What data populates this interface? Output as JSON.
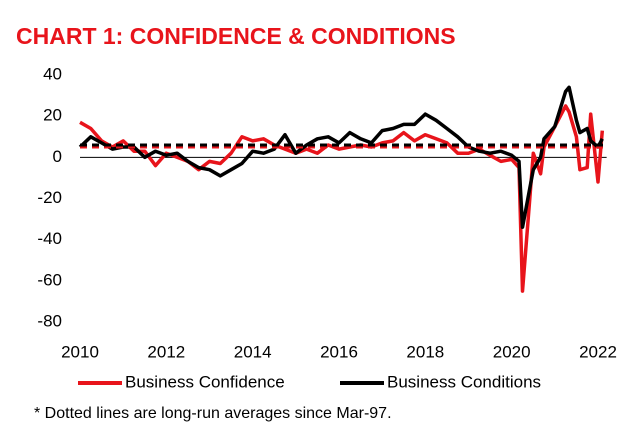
{
  "chart_data": {
    "type": "line",
    "title": "CHART 1: CONFIDENCE & CONDITIONS",
    "note": "* Dotted lines are long-run averages since Mar-97.",
    "x": [
      2010,
      2010.25,
      2010.5,
      2010.75,
      2011,
      2011.25,
      2011.5,
      2011.75,
      2012,
      2012.25,
      2012.5,
      2012.75,
      2013,
      2013.25,
      2013.5,
      2013.75,
      2014,
      2014.25,
      2014.5,
      2014.75,
      2015,
      2015.25,
      2015.5,
      2015.75,
      2016,
      2016.25,
      2016.5,
      2016.75,
      2017,
      2017.25,
      2017.5,
      2017.75,
      2018,
      2018.25,
      2018.5,
      2018.75,
      2019,
      2019.25,
      2019.5,
      2019.75,
      2020,
      2020.17,
      2020.25,
      2020.42,
      2020.5,
      2020.67,
      2020.75,
      2021,
      2021.25,
      2021.33,
      2021.5,
      2021.58,
      2021.75,
      2021.83,
      2022,
      2022.1
    ],
    "series": [
      {
        "name": "Business Confidence",
        "color": "#e8141b",
        "average": 5,
        "values": [
          17,
          14,
          8,
          5,
          8,
          3,
          3,
          -4,
          2,
          0,
          -2,
          -6,
          -2,
          -3,
          2,
          10,
          8,
          9,
          6,
          4,
          2,
          4,
          2,
          6,
          4,
          5,
          6,
          5,
          7,
          8,
          12,
          8,
          11,
          9,
          7,
          2,
          2,
          4,
          1,
          -2,
          -1,
          -5,
          -65,
          -20,
          2,
          -8,
          5,
          15,
          25,
          22,
          10,
          -6,
          -5,
          21,
          -12,
          13
        ]
      },
      {
        "name": "Business Conditions",
        "color": "#000000",
        "average": 6,
        "values": [
          5,
          10,
          7,
          4,
          5,
          5,
          0,
          3,
          1,
          2,
          -2,
          -5,
          -6,
          -9,
          -6,
          -3,
          3,
          2,
          4,
          11,
          2,
          6,
          9,
          10,
          7,
          12,
          9,
          7,
          13,
          14,
          16,
          16,
          21,
          18,
          14,
          10,
          5,
          3,
          2,
          3,
          1,
          -2,
          -34,
          -15,
          -6,
          0,
          9,
          15,
          32,
          34,
          18,
          12,
          14,
          8,
          5,
          9
        ]
      }
    ],
    "xlim": [
      2010,
      2022.2
    ],
    "xticks": [
      2010,
      2012,
      2014,
      2016,
      2018,
      2020,
      2022
    ],
    "ylim": [
      -85,
      40
    ],
    "yticks": [
      40,
      20,
      0,
      -20,
      -40,
      -60,
      -80
    ]
  }
}
